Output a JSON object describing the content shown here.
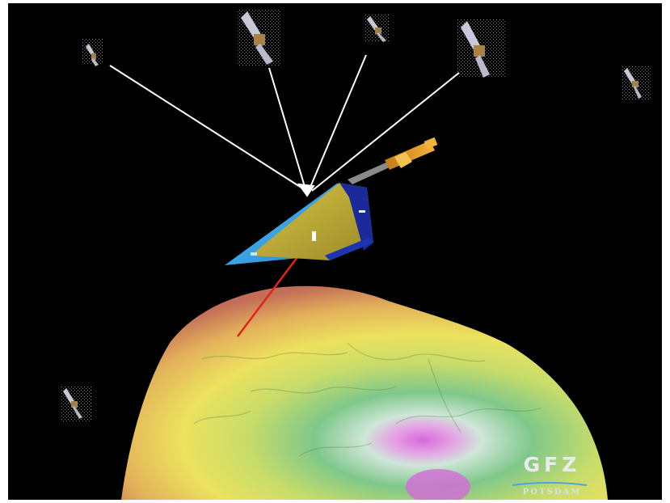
{
  "logo": {
    "main_text": "GFZ",
    "sub_text": "POTSDAM",
    "accent_color": "#4aa3e8"
  },
  "scene": {
    "subject": "satellite-tracked-by-gps-satellites-over-geoid",
    "signal_link_color": "#ffffff",
    "ranging_link_color": "#e0241c",
    "panel_color": "#2fa0e6",
    "body_color": "#c9b23a"
  }
}
